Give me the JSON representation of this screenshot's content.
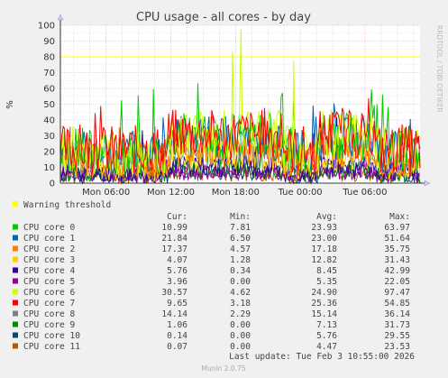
{
  "chart_data": {
    "type": "line",
    "title": "CPU usage - all cores - by day",
    "ylabel": "%",
    "ylim": [
      0,
      100
    ],
    "yticks": [
      0,
      10,
      20,
      30,
      40,
      50,
      60,
      70,
      80,
      90,
      100
    ],
    "xticks": [
      "Mon 06:00",
      "Mon 12:00",
      "Mon 18:00",
      "Tue 00:00",
      "Tue 06:00"
    ],
    "warning_threshold": 80,
    "warning_label": "Warning threshold",
    "columns": [
      "Cur:",
      "Min:",
      "Avg:",
      "Max:"
    ],
    "series": [
      {
        "name": "CPU core 0",
        "color": "#00cc00",
        "cur": "10.99",
        "min": "7.81",
        "avg": "23.93",
        "max": "63.97"
      },
      {
        "name": "CPU core 1",
        "color": "#0066b3",
        "cur": "21.84",
        "min": "6.50",
        "avg": "23.00",
        "max": "51.64"
      },
      {
        "name": "CPU core 2",
        "color": "#ff8000",
        "cur": "17.37",
        "min": "4.57",
        "avg": "17.18",
        "max": "35.75"
      },
      {
        "name": "CPU core 3",
        "color": "#ffcc00",
        "cur": "4.07",
        "min": "1.28",
        "avg": "12.82",
        "max": "31.43"
      },
      {
        "name": "CPU core 4",
        "color": "#330099",
        "cur": "5.76",
        "min": "0.34",
        "avg": "8.45",
        "max": "42.99"
      },
      {
        "name": "CPU core 5",
        "color": "#990099",
        "cur": "3.96",
        "min": "0.00",
        "avg": "5.35",
        "max": "22.05"
      },
      {
        "name": "CPU core 6",
        "color": "#ccff00",
        "cur": "30.57",
        "min": "4.62",
        "avg": "24.90",
        "max": "97.47"
      },
      {
        "name": "CPU core 7",
        "color": "#ff0000",
        "cur": "9.65",
        "min": "3.18",
        "avg": "25.36",
        "max": "54.85"
      },
      {
        "name": "CPU core 8",
        "color": "#808080",
        "cur": "14.14",
        "min": "2.29",
        "avg": "15.14",
        "max": "36.14"
      },
      {
        "name": "CPU core 9",
        "color": "#008f00",
        "cur": "1.06",
        "min": "0.00",
        "avg": "7.13",
        "max": "31.73"
      },
      {
        "name": "CPU core 10",
        "color": "#00487d",
        "cur": "0.14",
        "min": "0.00",
        "avg": "5.76",
        "max": "29.55"
      },
      {
        "name": "CPU core 11",
        "color": "#b35a00",
        "cur": "0.07",
        "min": "0.00",
        "avg": "4.47",
        "max": "23.53"
      }
    ]
  },
  "side_label": "RRDTOOL / TOBI OETIKER",
  "last_update": "Last update: Tue Feb  3 10:55:00 2026",
  "footer": "Munin 2.0.75",
  "colors": {
    "warning": "#ffff00",
    "grid_major": "#e8aaaa",
    "grid_minor": "#ddcccc"
  }
}
